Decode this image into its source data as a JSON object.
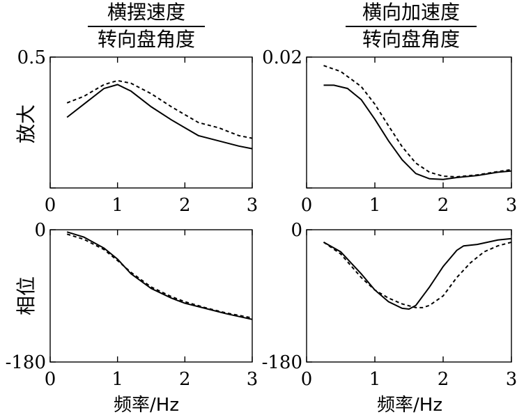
{
  "columns": [
    {
      "numerator": "横摆速度",
      "denominator": "转向盘角度"
    },
    {
      "numerator": "横向加速度",
      "denominator": "转向盘角度"
    }
  ],
  "row_labels": [
    "放大",
    "相位"
  ],
  "xlabel": "频率/Hz",
  "chart_data": [
    {
      "type": "line",
      "panel": "top-left",
      "xlim": [
        0,
        3
      ],
      "ylim": [
        0,
        0.5
      ],
      "xticks": [
        "0",
        "1",
        "2",
        "3"
      ],
      "ytick_labels": [
        "0.5",
        ""
      ],
      "series": [
        {
          "style": "solid",
          "x": [
            0.25,
            0.5,
            0.8,
            1.0,
            1.2,
            1.5,
            1.8,
            2.0,
            2.2,
            2.5,
            2.8,
            3.0
          ],
          "y": [
            0.27,
            0.32,
            0.38,
            0.395,
            0.37,
            0.31,
            0.26,
            0.23,
            0.2,
            0.18,
            0.16,
            0.15
          ]
        },
        {
          "style": "dashed",
          "x": [
            0.25,
            0.5,
            0.8,
            1.0,
            1.2,
            1.5,
            1.8,
            2.0,
            2.2,
            2.5,
            2.8,
            3.0
          ],
          "y": [
            0.325,
            0.35,
            0.395,
            0.41,
            0.4,
            0.36,
            0.31,
            0.28,
            0.25,
            0.23,
            0.2,
            0.19
          ]
        }
      ]
    },
    {
      "type": "line",
      "panel": "top-right",
      "xlim": [
        0,
        3
      ],
      "ylim": [
        0,
        0.02
      ],
      "xticks": [
        "0",
        "1",
        "2",
        "3"
      ],
      "ytick_labels": [
        "0.02",
        ""
      ],
      "series": [
        {
          "style": "solid",
          "x": [
            0.25,
            0.4,
            0.6,
            0.8,
            1.0,
            1.2,
            1.4,
            1.6,
            1.8,
            2.0,
            2.2,
            2.5,
            2.8,
            3.0
          ],
          "y": [
            0.0157,
            0.0157,
            0.0152,
            0.0135,
            0.0105,
            0.0072,
            0.0043,
            0.0022,
            0.0014,
            0.0013,
            0.0016,
            0.0019,
            0.0024,
            0.0026
          ]
        },
        {
          "style": "dashed",
          "x": [
            0.25,
            0.5,
            0.8,
            1.0,
            1.2,
            1.4,
            1.6,
            1.8,
            2.0,
            2.2,
            2.5,
            2.8,
            3.0
          ],
          "y": [
            0.0187,
            0.0178,
            0.0155,
            0.0128,
            0.0095,
            0.0063,
            0.0038,
            0.0024,
            0.0018,
            0.0017,
            0.002,
            0.0025,
            0.0028
          ]
        }
      ]
    },
    {
      "type": "line",
      "panel": "bottom-left",
      "xlim": [
        0,
        3
      ],
      "ylim": [
        -180,
        0
      ],
      "xticks": [
        "0",
        "1",
        "2",
        "3"
      ],
      "ytick_labels": [
        "0",
        "-180"
      ],
      "series": [
        {
          "style": "solid",
          "x": [
            0.25,
            0.5,
            0.8,
            1.0,
            1.2,
            1.5,
            1.8,
            2.0,
            2.3,
            2.6,
            3.0
          ],
          "y": [
            -3,
            -10,
            -25,
            -40,
            -60,
            -80,
            -93,
            -100,
            -107,
            -114,
            -122
          ]
        },
        {
          "style": "dashed",
          "x": [
            0.25,
            0.5,
            0.8,
            1.0,
            1.2,
            1.5,
            1.8,
            2.0,
            2.3,
            2.6,
            3.0
          ],
          "y": [
            -6,
            -13,
            -27,
            -42,
            -58,
            -78,
            -91,
            -98,
            -106,
            -113,
            -120
          ]
        }
      ]
    },
    {
      "type": "line",
      "panel": "bottom-right",
      "xlim": [
        0,
        3
      ],
      "ylim": [
        -180,
        0
      ],
      "xticks": [
        "0",
        "1",
        "2",
        "3"
      ],
      "ytick_labels": [
        "0",
        "-180"
      ],
      "series": [
        {
          "style": "solid",
          "x": [
            0.25,
            0.5,
            0.8,
            1.0,
            1.2,
            1.4,
            1.5,
            1.6,
            1.8,
            2.0,
            2.2,
            2.3,
            2.5,
            2.8,
            3.0
          ],
          "y": [
            -17,
            -30,
            -60,
            -82,
            -98,
            -107,
            -108,
            -103,
            -78,
            -50,
            -28,
            -22,
            -20,
            -14,
            -12
          ]
        },
        {
          "style": "dashed",
          "x": [
            0.25,
            0.5,
            0.8,
            1.0,
            1.2,
            1.4,
            1.6,
            1.7,
            1.8,
            2.0,
            2.2,
            2.4,
            2.6,
            2.8,
            3.0
          ],
          "y": [
            -17,
            -33,
            -65,
            -82,
            -93,
            -101,
            -106,
            -106,
            -103,
            -90,
            -65,
            -45,
            -30,
            -22,
            -17
          ]
        }
      ]
    }
  ]
}
